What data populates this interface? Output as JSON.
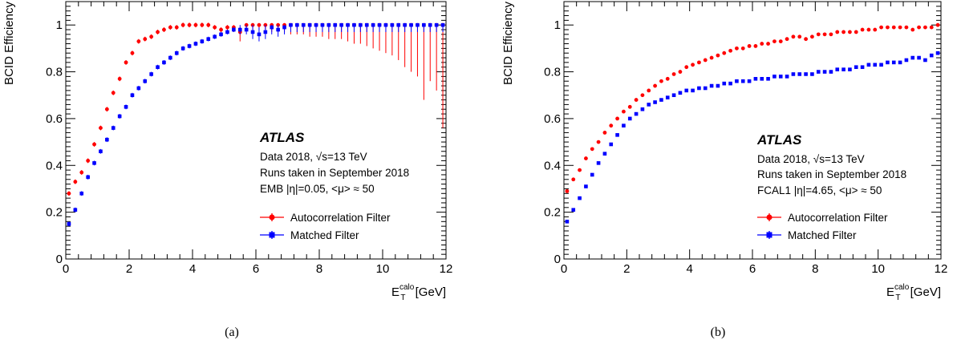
{
  "chart_data": [
    {
      "type": "scatter",
      "caption": "(a)",
      "xlabel": "E",
      "xlabel_sub": "T",
      "xlabel_sup": "calo",
      "xlabel_unit": " [GeV]",
      "ylabel": "BCID Efficiency",
      "xlim": [
        0,
        12
      ],
      "ylim": [
        0,
        1.1
      ],
      "xticks": [
        0,
        2,
        4,
        6,
        8,
        10,
        12
      ],
      "yticks": [
        0,
        0.2,
        0.4,
        0.6,
        0.8,
        1
      ],
      "atlas_label": "ATLAS",
      "info_lines": [
        "Data 2018, √s=13 TeV",
        "Runs taken in September 2018",
        "EMB |η|=0.05, <μ> ≈ 50"
      ],
      "legend_position": "center-right",
      "x": [
        0.1,
        0.3,
        0.5,
        0.7,
        0.9,
        1.1,
        1.3,
        1.5,
        1.7,
        1.9,
        2.1,
        2.3,
        2.5,
        2.7,
        2.9,
        3.1,
        3.3,
        3.5,
        3.7,
        3.9,
        4.1,
        4.3,
        4.5,
        4.7,
        4.9,
        5.1,
        5.3,
        5.5,
        5.7,
        5.9,
        6.1,
        6.3,
        6.5,
        6.7,
        6.9,
        7.1,
        7.3,
        7.5,
        7.7,
        7.9,
        8.1,
        8.3,
        8.5,
        8.7,
        8.9,
        9.1,
        9.3,
        9.5,
        9.7,
        9.9,
        10.1,
        10.3,
        10.5,
        10.7,
        10.9,
        11.1,
        11.3,
        11.5,
        11.7,
        11.9
      ],
      "series": [
        {
          "name": "Autocorrelation Filter",
          "color": "#ff0000",
          "values": [
            0.28,
            0.33,
            0.37,
            0.42,
            0.49,
            0.56,
            0.64,
            0.71,
            0.77,
            0.84,
            0.88,
            0.93,
            0.94,
            0.95,
            0.97,
            0.98,
            0.99,
            0.99,
            1.0,
            1.0,
            1.0,
            1.0,
            1.0,
            0.99,
            0.98,
            0.99,
            0.99,
            0.97,
            1.0,
            1.0,
            1.0,
            1.0,
            1.0,
            1.0,
            1.0,
            1.0,
            1.0,
            1.0,
            1.0,
            1.0,
            1.0,
            1.0,
            1.0,
            1.0,
            1.0,
            1.0,
            1.0,
            1.0,
            1.0,
            1.0,
            1.0,
            1.0,
            1.0,
            1.0,
            1.0,
            1.0,
            1.0,
            1.0,
            1.0,
            1.0
          ],
          "err_low": [
            0.01,
            0.01,
            0.01,
            0.01,
            0.01,
            0.01,
            0.01,
            0.01,
            0.01,
            0.01,
            0.01,
            0.01,
            0.01,
            0.01,
            0.01,
            0.01,
            0.01,
            0.01,
            0.01,
            0.01,
            0.01,
            0.01,
            0.01,
            0.01,
            0.02,
            0.02,
            0.02,
            0.04,
            0.02,
            0.02,
            0.02,
            0.02,
            0.03,
            0.03,
            0.03,
            0.04,
            0.04,
            0.04,
            0.05,
            0.05,
            0.05,
            0.06,
            0.06,
            0.06,
            0.07,
            0.08,
            0.08,
            0.09,
            0.1,
            0.11,
            0.12,
            0.13,
            0.15,
            0.18,
            0.2,
            0.22,
            0.32,
            0.24,
            0.28,
            0.44
          ],
          "err_high": [
            0.01,
            0.01,
            0.01,
            0.01,
            0.01,
            0.01,
            0.01,
            0.01,
            0.01,
            0.01,
            0.01,
            0.01,
            0.01,
            0.01,
            0.01,
            0.01,
            0.01,
            0.01,
            0.01,
            0.01,
            0.01,
            0.01,
            0.01,
            0.01,
            0.01,
            0.01,
            0.01,
            0.02,
            0.0,
            0.0,
            0.0,
            0.0,
            0.0,
            0.0,
            0.0,
            0.0,
            0.0,
            0.0,
            0.0,
            0.0,
            0.0,
            0.0,
            0.0,
            0.0,
            0.0,
            0.0,
            0.0,
            0.0,
            0.0,
            0.0,
            0.0,
            0.0,
            0.0,
            0.0,
            0.0,
            0.0,
            0.0,
            0.0,
            0.0,
            0.0
          ]
        },
        {
          "name": "Matched Filter",
          "color": "#0000ff",
          "values": [
            0.15,
            0.21,
            0.28,
            0.35,
            0.41,
            0.46,
            0.51,
            0.56,
            0.61,
            0.65,
            0.7,
            0.73,
            0.76,
            0.79,
            0.82,
            0.84,
            0.86,
            0.88,
            0.9,
            0.91,
            0.92,
            0.93,
            0.94,
            0.95,
            0.96,
            0.97,
            0.98,
            0.98,
            0.98,
            0.97,
            0.96,
            0.97,
            0.99,
            0.98,
            0.99,
            1.0,
            1.0,
            1.0,
            1.0,
            1.0,
            1.0,
            1.0,
            1.0,
            1.0,
            1.0,
            1.0,
            1.0,
            1.0,
            1.0,
            1.0,
            1.0,
            1.0,
            1.0,
            1.0,
            1.0,
            1.0,
            1.0,
            1.0,
            1.0,
            1.0
          ],
          "err_low": [
            0.01,
            0.01,
            0.01,
            0.01,
            0.01,
            0.01,
            0.01,
            0.01,
            0.01,
            0.01,
            0.01,
            0.01,
            0.01,
            0.01,
            0.01,
            0.01,
            0.01,
            0.01,
            0.01,
            0.01,
            0.01,
            0.01,
            0.01,
            0.01,
            0.01,
            0.01,
            0.01,
            0.02,
            0.02,
            0.03,
            0.03,
            0.03,
            0.03,
            0.03,
            0.03,
            0.03,
            0.03,
            0.03,
            0.03,
            0.03,
            0.03,
            0.03,
            0.03,
            0.03,
            0.03,
            0.03,
            0.03,
            0.03,
            0.03,
            0.03,
            0.03,
            0.03,
            0.03,
            0.03,
            0.03,
            0.03,
            0.03,
            0.03,
            0.03,
            0.03
          ],
          "err_high": [
            0.01,
            0.01,
            0.01,
            0.01,
            0.01,
            0.01,
            0.01,
            0.01,
            0.01,
            0.01,
            0.01,
            0.01,
            0.01,
            0.01,
            0.01,
            0.01,
            0.01,
            0.01,
            0.01,
            0.01,
            0.01,
            0.01,
            0.01,
            0.01,
            0.01,
            0.01,
            0.01,
            0.02,
            0.02,
            0.03,
            0.03,
            0.03,
            0.01,
            0.02,
            0.01,
            0.0,
            0.0,
            0.0,
            0.0,
            0.0,
            0.0,
            0.0,
            0.0,
            0.0,
            0.0,
            0.0,
            0.0,
            0.0,
            0.0,
            0.0,
            0.0,
            0.0,
            0.0,
            0.0,
            0.0,
            0.0,
            0.0,
            0.0,
            0.0,
            0.0
          ]
        }
      ]
    },
    {
      "type": "scatter",
      "caption": "(b)",
      "xlabel": "E",
      "xlabel_sub": "T",
      "xlabel_sup": "calo",
      "xlabel_unit": " [GeV]",
      "ylabel": "BCID Efficiency",
      "xlim": [
        0,
        12
      ],
      "ylim": [
        0,
        1.1
      ],
      "xticks": [
        0,
        2,
        4,
        6,
        8,
        10,
        12
      ],
      "yticks": [
        0,
        0.2,
        0.4,
        0.6,
        0.8,
        1
      ],
      "atlas_label": "ATLAS",
      "info_lines": [
        "Data 2018, √s=13 TeV",
        "Runs taken in September 2018",
        "FCAL1 |η|=4.65, <μ> ≈ 50"
      ],
      "legend_position": "center-right",
      "x": [
        0.1,
        0.3,
        0.5,
        0.7,
        0.9,
        1.1,
        1.3,
        1.5,
        1.7,
        1.9,
        2.1,
        2.3,
        2.5,
        2.7,
        2.9,
        3.1,
        3.3,
        3.5,
        3.7,
        3.9,
        4.1,
        4.3,
        4.5,
        4.7,
        4.9,
        5.1,
        5.3,
        5.5,
        5.7,
        5.9,
        6.1,
        6.3,
        6.5,
        6.7,
        6.9,
        7.1,
        7.3,
        7.5,
        7.7,
        7.9,
        8.1,
        8.3,
        8.5,
        8.7,
        8.9,
        9.1,
        9.3,
        9.5,
        9.7,
        9.9,
        10.1,
        10.3,
        10.5,
        10.7,
        10.9,
        11.1,
        11.3,
        11.5,
        11.7,
        11.9
      ],
      "series": [
        {
          "name": "Autocorrelation Filter",
          "color": "#ff0000",
          "values": [
            0.29,
            0.34,
            0.38,
            0.43,
            0.47,
            0.5,
            0.54,
            0.57,
            0.6,
            0.63,
            0.65,
            0.68,
            0.7,
            0.72,
            0.74,
            0.76,
            0.77,
            0.79,
            0.8,
            0.82,
            0.83,
            0.84,
            0.85,
            0.86,
            0.87,
            0.88,
            0.89,
            0.9,
            0.9,
            0.91,
            0.91,
            0.92,
            0.92,
            0.93,
            0.93,
            0.94,
            0.95,
            0.95,
            0.94,
            0.95,
            0.96,
            0.96,
            0.96,
            0.97,
            0.97,
            0.97,
            0.97,
            0.98,
            0.98,
            0.98,
            0.99,
            0.99,
            0.99,
            0.99,
            0.99,
            0.98,
            0.99,
            0.99,
            0.99,
            1.0
          ],
          "err_low": [
            0.005,
            0.005,
            0.005,
            0.005,
            0.005,
            0.005,
            0.005,
            0.005,
            0.005,
            0.005,
            0.005,
            0.005,
            0.005,
            0.005,
            0.005,
            0.005,
            0.005,
            0.005,
            0.005,
            0.005,
            0.005,
            0.005,
            0.005,
            0.005,
            0.005,
            0.005,
            0.005,
            0.005,
            0.005,
            0.005,
            0.005,
            0.005,
            0.005,
            0.005,
            0.005,
            0.005,
            0.005,
            0.005,
            0.005,
            0.005,
            0.005,
            0.005,
            0.005,
            0.005,
            0.005,
            0.005,
            0.005,
            0.005,
            0.005,
            0.005,
            0.005,
            0.005,
            0.005,
            0.005,
            0.005,
            0.005,
            0.005,
            0.005,
            0.005,
            0.005
          ],
          "err_high": [
            0.005,
            0.005,
            0.005,
            0.005,
            0.005,
            0.005,
            0.005,
            0.005,
            0.005,
            0.005,
            0.005,
            0.005,
            0.005,
            0.005,
            0.005,
            0.005,
            0.005,
            0.005,
            0.005,
            0.005,
            0.005,
            0.005,
            0.005,
            0.005,
            0.005,
            0.005,
            0.005,
            0.005,
            0.005,
            0.005,
            0.005,
            0.005,
            0.005,
            0.005,
            0.005,
            0.005,
            0.005,
            0.005,
            0.005,
            0.005,
            0.005,
            0.005,
            0.005,
            0.005,
            0.005,
            0.005,
            0.005,
            0.005,
            0.005,
            0.005,
            0.005,
            0.005,
            0.005,
            0.005,
            0.005,
            0.005,
            0.005,
            0.005,
            0.005,
            0.0
          ]
        },
        {
          "name": "Matched Filter",
          "color": "#0000ff",
          "values": [
            0.16,
            0.21,
            0.26,
            0.31,
            0.36,
            0.41,
            0.45,
            0.49,
            0.53,
            0.57,
            0.6,
            0.62,
            0.64,
            0.66,
            0.67,
            0.68,
            0.69,
            0.7,
            0.71,
            0.72,
            0.72,
            0.73,
            0.73,
            0.74,
            0.74,
            0.75,
            0.75,
            0.76,
            0.76,
            0.76,
            0.77,
            0.77,
            0.77,
            0.78,
            0.78,
            0.78,
            0.79,
            0.79,
            0.79,
            0.79,
            0.8,
            0.8,
            0.8,
            0.81,
            0.81,
            0.81,
            0.82,
            0.82,
            0.83,
            0.83,
            0.83,
            0.84,
            0.84,
            0.84,
            0.85,
            0.86,
            0.86,
            0.85,
            0.87,
            0.88
          ],
          "err_low": [
            0.005,
            0.005,
            0.005,
            0.005,
            0.005,
            0.005,
            0.005,
            0.005,
            0.005,
            0.005,
            0.005,
            0.005,
            0.005,
            0.005,
            0.005,
            0.005,
            0.005,
            0.005,
            0.005,
            0.005,
            0.005,
            0.005,
            0.005,
            0.005,
            0.005,
            0.005,
            0.005,
            0.005,
            0.005,
            0.005,
            0.005,
            0.005,
            0.005,
            0.005,
            0.005,
            0.005,
            0.005,
            0.005,
            0.005,
            0.005,
            0.005,
            0.005,
            0.005,
            0.005,
            0.005,
            0.005,
            0.005,
            0.005,
            0.005,
            0.005,
            0.005,
            0.005,
            0.005,
            0.005,
            0.005,
            0.005,
            0.005,
            0.005,
            0.005,
            0.005
          ],
          "err_high": [
            0.005,
            0.005,
            0.005,
            0.005,
            0.005,
            0.005,
            0.005,
            0.005,
            0.005,
            0.005,
            0.005,
            0.005,
            0.005,
            0.005,
            0.005,
            0.005,
            0.005,
            0.005,
            0.005,
            0.005,
            0.005,
            0.005,
            0.005,
            0.005,
            0.005,
            0.005,
            0.005,
            0.005,
            0.005,
            0.005,
            0.005,
            0.005,
            0.005,
            0.005,
            0.005,
            0.005,
            0.005,
            0.005,
            0.005,
            0.005,
            0.005,
            0.005,
            0.005,
            0.005,
            0.005,
            0.005,
            0.005,
            0.005,
            0.005,
            0.005,
            0.005,
            0.005,
            0.005,
            0.005,
            0.005,
            0.005,
            0.005,
            0.005,
            0.005,
            0.005
          ]
        }
      ]
    }
  ]
}
